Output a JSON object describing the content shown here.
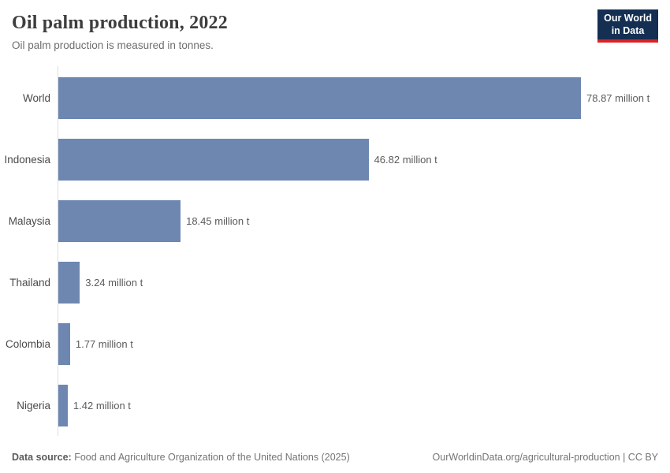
{
  "header": {
    "title": "Oil palm production, 2022",
    "subtitle": "Oil palm production is measured in tonnes.",
    "logo": {
      "line1": "Our World",
      "line2": "in Data"
    }
  },
  "chart_data": {
    "type": "bar",
    "orientation": "horizontal",
    "title": "Oil palm production, 2022",
    "unit": "million t",
    "categories": [
      "World",
      "Indonesia",
      "Malaysia",
      "Thailand",
      "Colombia",
      "Nigeria"
    ],
    "values": [
      78.87,
      46.82,
      18.45,
      3.24,
      1.77,
      1.42
    ],
    "value_labels": [
      "78.87 million t",
      "46.82 million t",
      "18.45 million t",
      "3.24 million t",
      "1.77 million t",
      "1.42 million t"
    ],
    "xlim": [
      0,
      78.87
    ],
    "grid": false,
    "legend": "none",
    "bar_color": "#6e87b1",
    "axis_line_color": "#dcdcdc"
  },
  "footer": {
    "data_source_label": "Data source:",
    "data_source_text": "Food and Agriculture Organization of the United Nations (2025)",
    "license_text": "OurWorldinData.org/agricultural-production | CC BY"
  },
  "colors": {
    "logo_background": "#142f52",
    "logo_underline": "#dc2227",
    "bar": "#6e87b1"
  }
}
